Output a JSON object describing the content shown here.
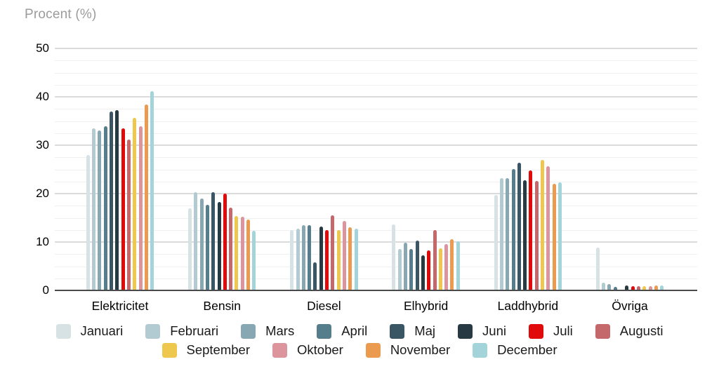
{
  "chart_data": {
    "type": "bar",
    "title": "Procent (%)",
    "ylabel": "Procent (%)",
    "xlabel": "",
    "ylim": [
      0,
      50
    ],
    "ytick_step": 10,
    "minor_gridline_step": 2.5,
    "yticks": [
      "0",
      "10",
      "20",
      "30",
      "40",
      "50"
    ],
    "grid": true,
    "legend_position": "bottom",
    "categories": [
      "Elektricitet",
      "Bensin",
      "Diesel",
      "Elhybrid",
      "Laddhybrid",
      "Övriga"
    ],
    "series": [
      {
        "name": "Januari",
        "color": "#d7e2e5",
        "values": [
          28.0,
          17.0,
          12.5,
          13.6,
          19.7,
          8.8
        ]
      },
      {
        "name": "Februari",
        "color": "#b2cad1",
        "values": [
          33.5,
          20.3,
          12.8,
          8.6,
          23.2,
          1.6
        ]
      },
      {
        "name": "Mars",
        "color": "#87a7b2",
        "values": [
          33.0,
          19.0,
          13.5,
          9.9,
          23.2,
          1.3
        ]
      },
      {
        "name": "April",
        "color": "#567d8b",
        "values": [
          33.9,
          17.7,
          13.5,
          8.5,
          25.1,
          0.7
        ]
      },
      {
        "name": "Maj",
        "color": "#3a5665",
        "values": [
          37.0,
          20.3,
          5.8,
          10.3,
          26.4,
          0.1
        ]
      },
      {
        "name": "Juni",
        "color": "#273a44",
        "values": [
          37.2,
          18.2,
          13.2,
          7.2,
          22.8,
          1.0
        ]
      },
      {
        "name": "Juli",
        "color": "#e10a0a",
        "values": [
          33.5,
          20.0,
          12.5,
          8.3,
          24.8,
          0.8
        ]
      },
      {
        "name": "Augusti",
        "color": "#c4686c",
        "values": [
          31.2,
          17.1,
          15.5,
          12.5,
          22.6,
          0.8
        ]
      },
      {
        "name": "September",
        "color": "#eec84e",
        "values": [
          35.7,
          15.3,
          12.5,
          8.7,
          27.0,
          0.8
        ]
      },
      {
        "name": "Oktober",
        "color": "#dd959d",
        "values": [
          33.9,
          15.2,
          14.3,
          9.6,
          25.7,
          0.8
        ]
      },
      {
        "name": "November",
        "color": "#ea9b50",
        "values": [
          38.4,
          14.6,
          13.0,
          10.6,
          22.0,
          1.0
        ]
      },
      {
        "name": "December",
        "color": "#a3d4da",
        "values": [
          41.2,
          12.3,
          12.8,
          10.1,
          22.3,
          1.0
        ]
      }
    ]
  }
}
